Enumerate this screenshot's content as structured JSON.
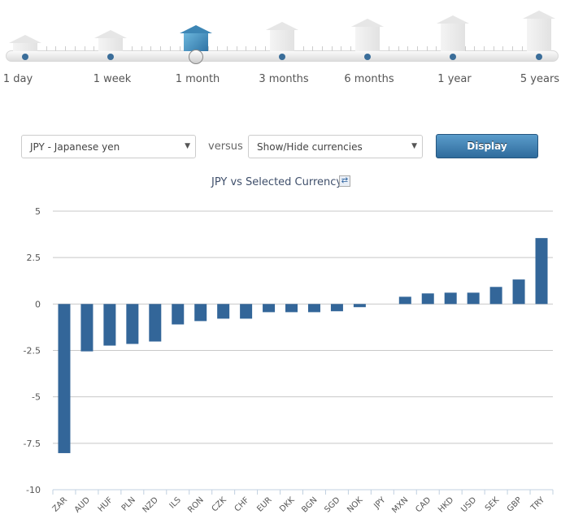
{
  "period_slider": {
    "options": [
      "1 day",
      "1 week",
      "1 month",
      "3 months",
      "6 months",
      "1 year",
      "5 years"
    ],
    "selected": "1 month"
  },
  "controls": {
    "base_currency": "JPY - Japanese yen",
    "versus_label": "versus",
    "compare_select": "Show/Hide currencies",
    "display_button": "Display"
  },
  "chart_data": {
    "type": "bar",
    "title": "JPY vs Selected Currency",
    "categories": [
      "ZAR",
      "AUD",
      "HUF",
      "PLN",
      "NZD",
      "ILS",
      "RON",
      "CZK",
      "CHF",
      "EUR",
      "DKK",
      "BGN",
      "SGD",
      "NOK",
      "JPY",
      "MXN",
      "CAD",
      "HKD",
      "USD",
      "SEK",
      "GBP",
      "TRY"
    ],
    "values": [
      -8.03,
      -2.55,
      -2.24,
      -2.15,
      -2.02,
      -1.1,
      -0.92,
      -0.79,
      -0.79,
      -0.44,
      -0.44,
      -0.44,
      -0.39,
      -0.17,
      0,
      0.39,
      0.57,
      0.61,
      0.61,
      0.92,
      1.32,
      3.55
    ],
    "ylim": [
      -10,
      5
    ],
    "yticks": [
      "5",
      "2.5",
      "0",
      "-2.5",
      "-5",
      "-7.5",
      "-10"
    ],
    "grid": true,
    "bar_color": "#336699"
  }
}
